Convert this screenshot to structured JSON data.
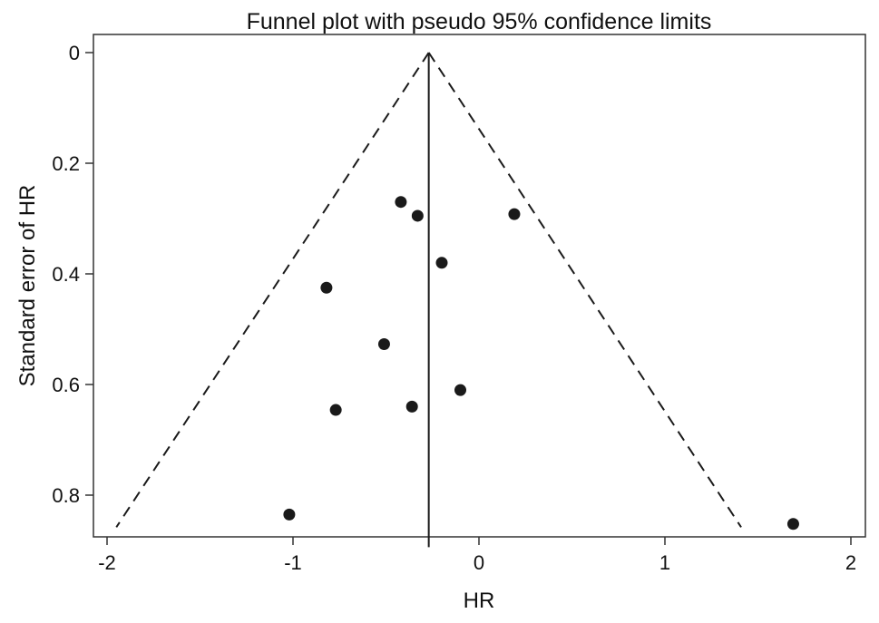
{
  "chart_data": {
    "type": "scatter",
    "title": "Funnel plot with pseudo 95% confidence limits",
    "xlabel": "HR",
    "ylabel": "Standard error of HR",
    "xlim": [
      -2.08,
      2.08
    ],
    "ylim": [
      0,
      0.875
    ],
    "y_reversed": true,
    "x_ticks": [
      -2,
      -1,
      0,
      1,
      2
    ],
    "x_tick_labels": [
      "-2",
      "-1",
      "0",
      "1",
      "2"
    ],
    "y_ticks": [
      0,
      0.2,
      0.4,
      0.6,
      0.8
    ],
    "y_tick_labels": [
      "0",
      "0.2",
      "0.4",
      "0.6",
      "0.8"
    ],
    "pooled_effect": -0.27,
    "funnel_limits": {
      "apex": [
        -0.27,
        0
      ],
      "left_base": [
        -1.95,
        0.858
      ],
      "right_base": [
        1.41,
        0.858
      ]
    },
    "points": [
      {
        "x": -0.42,
        "y": 0.27
      },
      {
        "x": -0.33,
        "y": 0.295
      },
      {
        "x": 0.19,
        "y": 0.292
      },
      {
        "x": -0.2,
        "y": 0.38
      },
      {
        "x": -0.82,
        "y": 0.425
      },
      {
        "x": -0.51,
        "y": 0.527
      },
      {
        "x": -0.1,
        "y": 0.61
      },
      {
        "x": -0.77,
        "y": 0.646
      },
      {
        "x": -0.36,
        "y": 0.64
      },
      {
        "x": -1.02,
        "y": 0.835
      },
      {
        "x": 1.69,
        "y": 0.852
      }
    ],
    "grid": false,
    "legend": "none",
    "colors": {
      "marker": "#1a1a1a",
      "line": "#1a1a1a",
      "frame": "#333333"
    }
  }
}
